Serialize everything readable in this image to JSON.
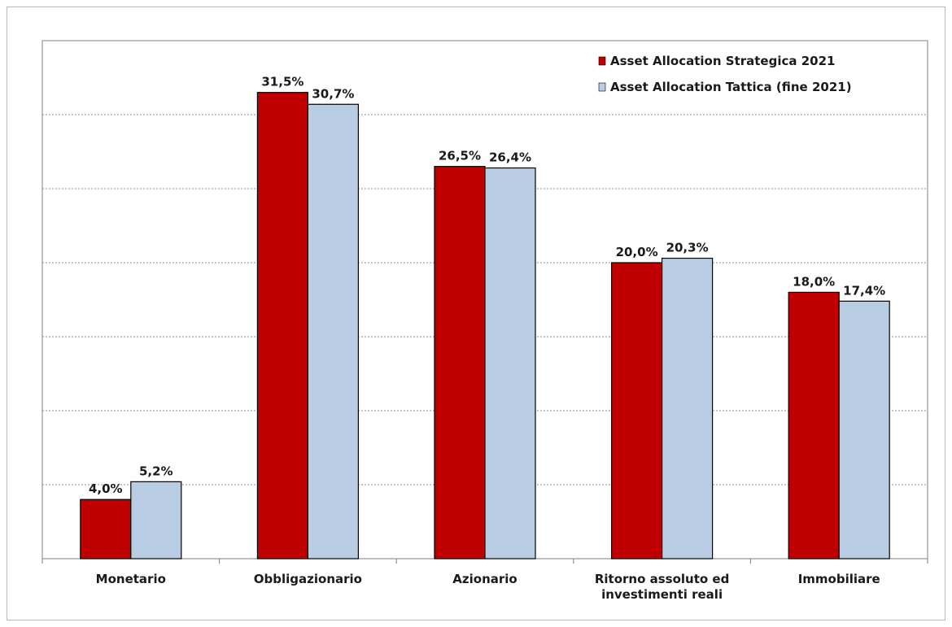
{
  "chart_data": {
    "type": "bar",
    "categories": [
      [
        "Monetario"
      ],
      [
        "Obbligazionario"
      ],
      [
        "Azionario"
      ],
      [
        "Ritorno assoluto ed",
        "investimenti reali"
      ],
      [
        "Immobiliare"
      ]
    ],
    "series": [
      {
        "name": "Asset Allocation Strategica 2021",
        "color": "#c00000",
        "values": [
          4.0,
          31.5,
          26.5,
          20.0,
          18.0
        ],
        "labels": [
          "4,0%",
          "31,5%",
          "26,5%",
          "20,0%",
          "18,0%"
        ]
      },
      {
        "name": "Asset Allocation Tattica (fine 2021)",
        "color": "#b8cce4",
        "values": [
          5.2,
          30.7,
          26.4,
          20.3,
          17.4
        ],
        "labels": [
          "5,2%",
          "30,7%",
          "26,4%",
          "20,3%",
          "17,4%"
        ]
      }
    ],
    "ylim": [
      0,
      35
    ],
    "gridlines": true,
    "legend": "top-right",
    "title": "",
    "xlabel": "",
    "ylabel": ""
  }
}
